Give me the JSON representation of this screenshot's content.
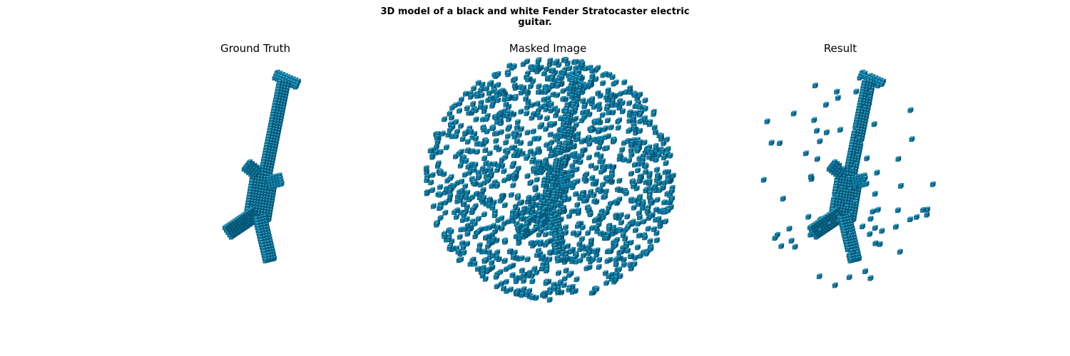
{
  "figure": {
    "suptitle_line1": "3D model of a black and white Fender Stratocaster electric",
    "suptitle_line2": "guitar.",
    "panels": [
      {
        "title": "Ground Truth"
      },
      {
        "title": "Masked Image"
      },
      {
        "title": "Result"
      }
    ]
  },
  "colors": {
    "voxel_top": "#2bb8e6",
    "voxel_front": "#0e7fa8",
    "voxel_side": "#075e80",
    "voxel_edge": "#053a4f"
  }
}
